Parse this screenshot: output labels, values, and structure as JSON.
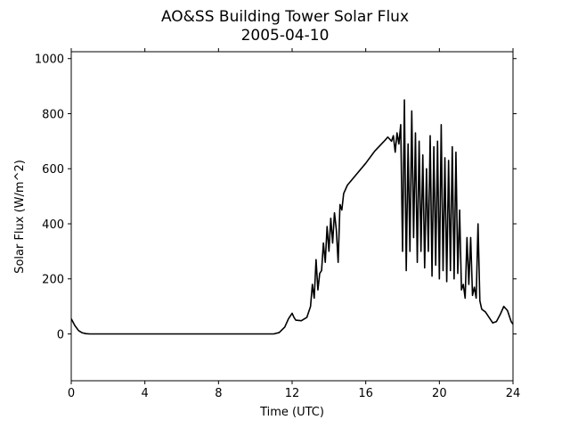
{
  "chart_data": {
    "type": "line",
    "title": "AO&SS Building Tower Solar Flux",
    "subtitle": "2005-04-10",
    "x_label": "Time (UTC)",
    "y_label": "Solar Flux (W/m^2)",
    "xlim": [
      0,
      24
    ],
    "xticks": [
      0,
      4,
      8,
      12,
      16,
      20,
      24
    ],
    "ylim": [
      -170,
      1025
    ],
    "yticks": [
      0,
      200,
      400,
      600,
      800,
      1000
    ],
    "grid": false,
    "series": [
      {
        "name": "Solar Flux",
        "color": "#000000",
        "x": [
          0,
          0.2,
          0.4,
          0.6,
          0.8,
          1,
          2,
          4,
          6,
          8,
          10,
          11,
          11.3,
          11.6,
          11.8,
          12,
          12.1,
          12.2,
          12.5,
          12.8,
          13,
          13.1,
          13.2,
          13.3,
          13.4,
          13.5,
          13.6,
          13.7,
          13.8,
          13.9,
          14,
          14.1,
          14.2,
          14.3,
          14.4,
          14.5,
          14.6,
          14.7,
          14.8,
          15,
          15.5,
          16,
          16.5,
          17,
          17.2,
          17.4,
          17.5,
          17.6,
          17.7,
          17.8,
          17.9,
          18,
          18.1,
          18.2,
          18.3,
          18.4,
          18.5,
          18.6,
          18.7,
          18.8,
          18.9,
          19,
          19.1,
          19.2,
          19.3,
          19.4,
          19.5,
          19.6,
          19.7,
          19.8,
          19.9,
          20,
          20.1,
          20.2,
          20.3,
          20.4,
          20.5,
          20.6,
          20.7,
          20.8,
          20.9,
          21,
          21.1,
          21.2,
          21.3,
          21.4,
          21.5,
          21.6,
          21.7,
          21.8,
          21.9,
          22,
          22.1,
          22.2,
          22.3,
          22.5,
          22.7,
          22.9,
          23.1,
          23.3,
          23.5,
          23.7,
          23.9,
          24
        ],
        "values": [
          55,
          30,
          12,
          4,
          1,
          0,
          0,
          0,
          0,
          0,
          0,
          0,
          5,
          25,
          55,
          75,
          60,
          50,
          48,
          60,
          100,
          180,
          130,
          270,
          160,
          220,
          230,
          330,
          260,
          390,
          300,
          420,
          330,
          440,
          380,
          260,
          470,
          450,
          510,
          540,
          580,
          620,
          665,
          700,
          715,
          700,
          720,
          660,
          730,
          690,
          760,
          300,
          850,
          230,
          690,
          300,
          810,
          350,
          730,
          260,
          700,
          300,
          650,
          240,
          600,
          300,
          720,
          210,
          680,
          250,
          700,
          200,
          760,
          230,
          640,
          190,
          630,
          230,
          680,
          200,
          660,
          220,
          450,
          160,
          180,
          130,
          350,
          180,
          350,
          140,
          170,
          130,
          400,
          120,
          90,
          80,
          60,
          40,
          45,
          70,
          100,
          85,
          45,
          35
        ]
      }
    ]
  }
}
